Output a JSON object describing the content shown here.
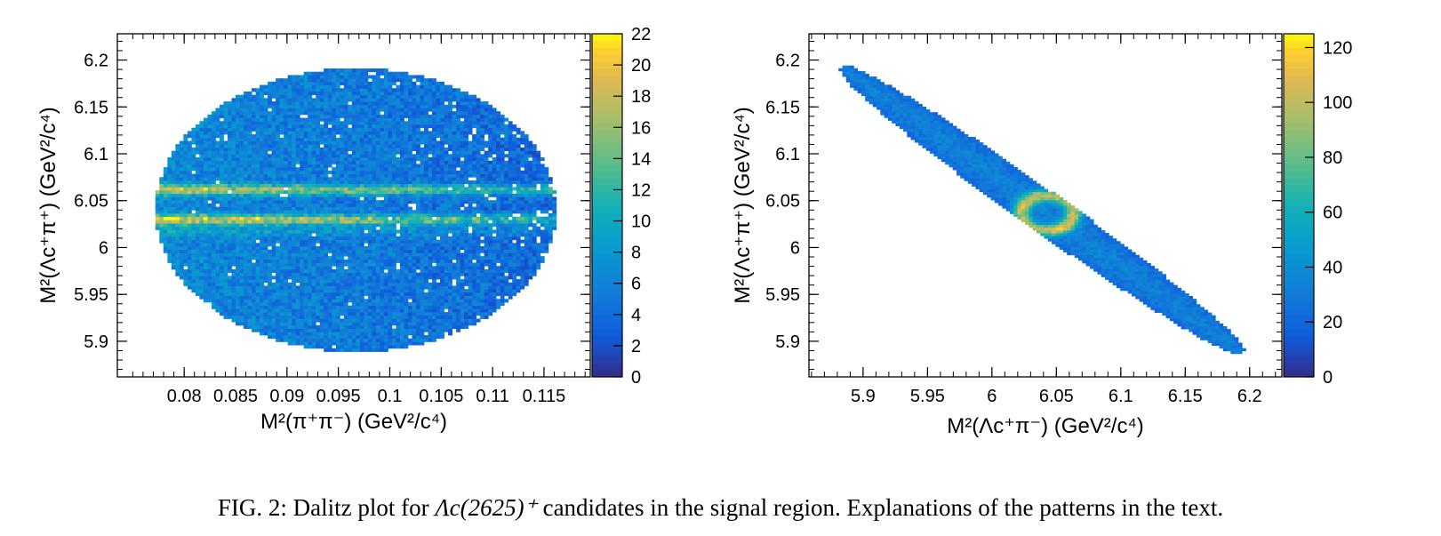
{
  "chart_data": [
    {
      "type": "heatmap",
      "xlabel": "M²(π⁺π⁻) (GeV²/c⁴)",
      "ylabel": "M²(Λc⁺π⁺) (GeV²/c⁴)",
      "xlim": [
        0.0735,
        0.1195
      ],
      "ylim": [
        5.862,
        6.228
      ],
      "x_ticks": [
        "0.08",
        "0.085",
        "0.09",
        "0.095",
        "0.1",
        "0.105",
        "0.11",
        "0.115"
      ],
      "x_tick_values": [
        0.08,
        0.085,
        0.09,
        0.095,
        0.1,
        0.105,
        0.11,
        0.115
      ],
      "y_ticks": [
        "5.9",
        "5.95",
        "6",
        "6.05",
        "6.1",
        "6.15",
        "6.2"
      ],
      "y_tick_values": [
        5.9,
        5.95,
        6.0,
        6.05,
        6.1,
        6.15,
        6.2
      ],
      "colorbar": {
        "min": 0,
        "max": 22,
        "ticks": [
          "0",
          "2",
          "4",
          "6",
          "8",
          "10",
          "12",
          "14",
          "16",
          "18",
          "20",
          "22"
        ]
      },
      "region": {
        "shape": "ellipse",
        "x_center": 0.0967,
        "y_center": 6.04,
        "x_half_width": 0.0195,
        "y_half_height": 0.151
      },
      "bands": [
        {
          "y": 6.062,
          "peak": 17
        },
        {
          "y": 6.03,
          "peak": 19
        },
        {
          "y": 6.017,
          "peak": 8
        }
      ],
      "typical_bin_count": 5,
      "grid": false
    },
    {
      "type": "heatmap",
      "xlabel": "M²(Λc⁺π⁻) (GeV²/c⁴)",
      "ylabel": "M²(Λc⁺π⁺) (GeV²/c⁴)",
      "xlim": [
        5.858,
        6.225
      ],
      "ylim": [
        5.862,
        6.228
      ],
      "x_ticks": [
        "5.9",
        "5.95",
        "6",
        "6.05",
        "6.1",
        "6.15",
        "6.2"
      ],
      "x_tick_values": [
        5.9,
        5.95,
        6.0,
        6.05,
        6.1,
        6.15,
        6.2
      ],
      "y_ticks": [
        "5.9",
        "5.95",
        "6",
        "6.05",
        "6.1",
        "6.15",
        "6.2"
      ],
      "y_tick_values": [
        5.9,
        5.95,
        6.0,
        6.05,
        6.1,
        6.15,
        6.2
      ],
      "colorbar": {
        "min": 0,
        "max": 125,
        "ticks": [
          "0",
          "20",
          "40",
          "60",
          "80",
          "100",
          "120"
        ]
      },
      "region": {
        "shape": "diagonal-band",
        "x_start": 5.884,
        "y_start": 6.192,
        "x_end": 6.194,
        "y_end": 5.888
      },
      "hotspot": {
        "x": 6.043,
        "y": 6.037,
        "peak": 120
      },
      "typical_bin_count": 35,
      "grid": false
    }
  ],
  "caption": {
    "prefix": "FIG. 2: Dalitz plot for ",
    "symbol": "Λc(2625)⁺",
    "suffix": " candidates in the signal region. Explanations of the patterns in the text."
  }
}
